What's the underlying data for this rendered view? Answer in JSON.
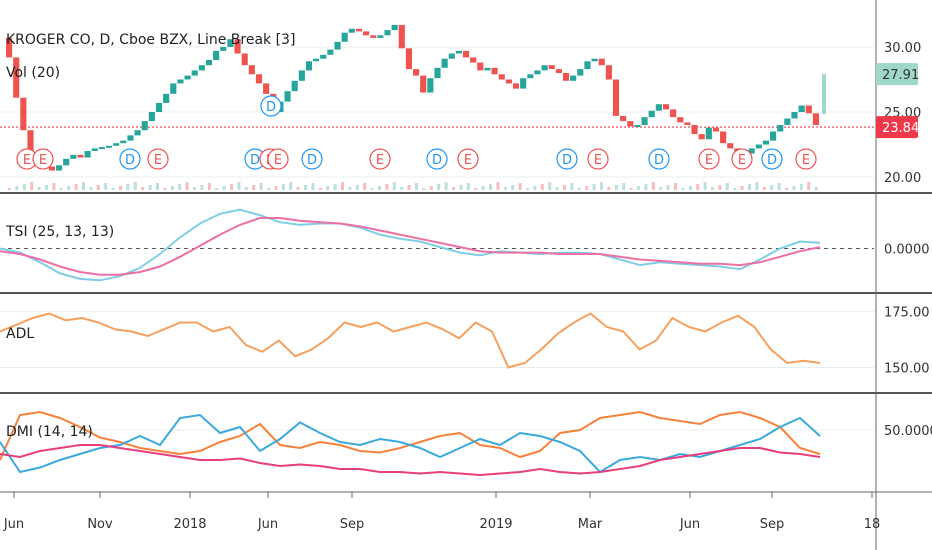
{
  "chart_data": [
    {
      "type": "line-break",
      "title": "KROGER CO, D, Cboe BZX, Line Break [3]",
      "volume_label": "Vol (20)",
      "yticks": [
        "30.00",
        "25.00",
        "20.00"
      ],
      "ylim": [
        19,
        33
      ],
      "last_price": {
        "label": "27.91",
        "value": 27.91,
        "color": "#9fd8c8"
      },
      "ref_price": {
        "label": "23.84",
        "value": 23.84,
        "color": "#f0384b"
      },
      "colors": {
        "up": "#26a69a",
        "down": "#ef5350"
      },
      "series": [
        {
          "name": "bricks",
          "values": [
            29.2,
            26.1,
            23.6,
            21.0,
            20.9,
            20.8,
            20.5,
            20.9,
            21.4,
            21.7,
            21.5,
            22.0,
            22.2,
            22.3,
            22.4,
            22.6,
            22.8,
            23.2,
            23.6,
            24.3,
            25.0,
            25.7,
            26.4,
            27.2,
            27.5,
            27.8,
            28.2,
            28.6,
            29.0,
            29.7,
            30.0,
            30.6,
            29.5,
            28.6,
            27.9,
            27.2,
            26.4,
            25.0,
            25.8,
            26.6,
            27.4,
            28.2,
            28.9,
            29.1,
            29.4,
            29.8,
            30.4,
            31.1,
            31.4,
            31.2,
            30.9,
            30.7,
            30.9,
            31.3,
            31.7,
            29.9,
            28.3,
            27.8,
            26.5,
            27.6,
            28.4,
            29.1,
            29.5,
            29.7,
            29.2,
            28.8,
            28.2,
            28.4,
            27.9,
            27.5,
            27.2,
            26.8,
            27.6,
            27.9,
            28.2,
            28.6,
            28.3,
            28.0,
            27.4,
            27.8,
            28.3,
            28.9,
            29.1,
            28.6,
            27.5,
            24.7,
            24.3,
            23.9,
            24.0,
            24.6,
            25.1,
            25.6,
            25.2,
            24.6,
            24.2,
            24.0,
            23.3,
            22.9,
            23.8,
            23.5,
            22.6,
            22.2,
            21.9,
            21.8,
            22.2,
            22.5,
            22.8,
            23.5,
            24.0,
            24.5,
            25.0,
            25.5,
            24.9,
            24.0
          ]
        },
        {
          "name": "bars_kind",
          "values": [
            0,
            0,
            0,
            0,
            0,
            0,
            0,
            1,
            1,
            1,
            0,
            1,
            1,
            1,
            1,
            1,
            1,
            1,
            1,
            1,
            1,
            1,
            1,
            1,
            1,
            1,
            1,
            1,
            1,
            1,
            1,
            1,
            0,
            0,
            0,
            0,
            0,
            0,
            1,
            1,
            1,
            1,
            1,
            1,
            1,
            1,
            1,
            1,
            1,
            0,
            0,
            0,
            1,
            1,
            1,
            0,
            0,
            0,
            0,
            1,
            1,
            1,
            1,
            1,
            0,
            0,
            0,
            1,
            0,
            0,
            0,
            0,
            1,
            1,
            1,
            1,
            0,
            0,
            0,
            1,
            1,
            1,
            1,
            0,
            0,
            0,
            0,
            0,
            1,
            1,
            1,
            1,
            0,
            0,
            0,
            0,
            0,
            0,
            1,
            0,
            0,
            0,
            0,
            0,
            1,
            1,
            1,
            1,
            1,
            1,
            1,
            1,
            0,
            0
          ]
        },
        {
          "name": "markers",
          "values": [
            27,
            43,
            130,
            158,
            255,
            270,
            278,
            312,
            380,
            437,
            468,
            567,
            598,
            659,
            709,
            742,
            772,
            806
          ]
        },
        {
          "name": "marker_types",
          "values": [
            "E",
            "E",
            "D",
            "E",
            "D",
            "E",
            "E",
            "D",
            "E",
            "D",
            "E",
            "D",
            "E",
            "D",
            "E",
            "E",
            "D",
            "E"
          ]
        }
      ]
    },
    {
      "type": "line",
      "title": "TSI (25, 13, 13)",
      "yticks": [
        "0.0000"
      ],
      "series": [
        {
          "name": "",
          "color": "#7fcde6",
          "values": [
            0,
            -3,
            -10,
            -18,
            -22,
            -23,
            -20,
            -14,
            -4,
            8,
            18,
            25,
            28,
            24,
            19,
            17,
            18,
            18,
            15,
            10,
            7,
            5,
            1,
            -3,
            -5,
            -2,
            -3,
            -4,
            -3,
            -3,
            -4,
            -8,
            -12,
            -10,
            -11,
            -12,
            -13,
            -15,
            -8,
            0,
            5,
            4
          ]
        },
        {
          "name": "",
          "color": "#ec6fa5",
          "values": [
            -2,
            -4,
            -8,
            -13,
            -17,
            -19,
            -19,
            -17,
            -13,
            -6,
            2,
            10,
            17,
            22,
            22,
            20,
            19,
            18,
            16,
            13,
            10,
            7,
            4,
            1,
            -2,
            -3,
            -3,
            -3,
            -4,
            -4,
            -4,
            -6,
            -8,
            -9,
            -10,
            -11,
            -11,
            -12,
            -10,
            -6,
            -2,
            1
          ]
        }
      ]
    },
    {
      "type": "line",
      "title": "ADL",
      "yticks": [
        "175.00",
        "150.00"
      ],
      "series": [
        {
          "name": "",
          "color": "#f6a05d",
          "values": [
            166,
            169,
            172,
            174,
            171,
            172,
            170,
            167,
            166,
            164,
            167,
            170,
            170,
            166,
            168,
            160,
            157,
            162,
            155,
            158,
            163,
            170,
            168,
            170,
            166,
            168,
            170,
            167,
            163,
            170,
            166,
            150,
            152,
            158,
            165,
            170,
            174,
            168,
            166,
            158,
            162,
            172,
            168,
            166,
            170,
            173,
            168,
            158,
            152,
            153,
            152
          ]
        }
      ]
    },
    {
      "type": "line",
      "title": "DMI (14, 14)",
      "yticks": [
        "50.0000"
      ],
      "series": [
        {
          "name": "",
          "color": "#f6823a",
          "values": [
            30,
            60,
            62,
            58,
            52,
            45,
            42,
            38,
            36,
            34,
            36,
            42,
            46,
            54,
            40,
            38,
            42,
            40,
            36,
            35,
            38,
            42,
            46,
            48,
            40,
            38,
            32,
            36,
            48,
            50,
            58,
            60,
            62,
            58,
            56,
            54,
            60,
            62,
            58,
            52,
            38,
            34
          ]
        },
        {
          "name": "",
          "color": "#3aa9dd",
          "values": [
            42,
            22,
            25,
            30,
            34,
            38,
            40,
            46,
            40,
            58,
            60,
            48,
            52,
            36,
            44,
            55,
            48,
            42,
            40,
            44,
            42,
            38,
            32,
            38,
            44,
            40,
            48,
            46,
            42,
            36,
            22,
            30,
            32,
            30,
            34,
            32,
            36,
            40,
            44,
            52,
            58,
            46
          ]
        },
        {
          "name": "",
          "color": "#e83e7c",
          "values": [
            34,
            32,
            36,
            38,
            40,
            40,
            38,
            36,
            34,
            32,
            30,
            30,
            31,
            28,
            26,
            27,
            26,
            24,
            24,
            22,
            22,
            21,
            22,
            21,
            20,
            21,
            22,
            24,
            22,
            21,
            22,
            24,
            26,
            30,
            32,
            34,
            36,
            38,
            38,
            35,
            34,
            32
          ]
        }
      ]
    },
    {
      "type": "axis",
      "x_tick_labels": [
        "Jun",
        "Nov",
        "2018",
        "Jun",
        "Sep",
        "2019",
        "Mar",
        "Jun",
        "Sep",
        "18"
      ]
    }
  ]
}
